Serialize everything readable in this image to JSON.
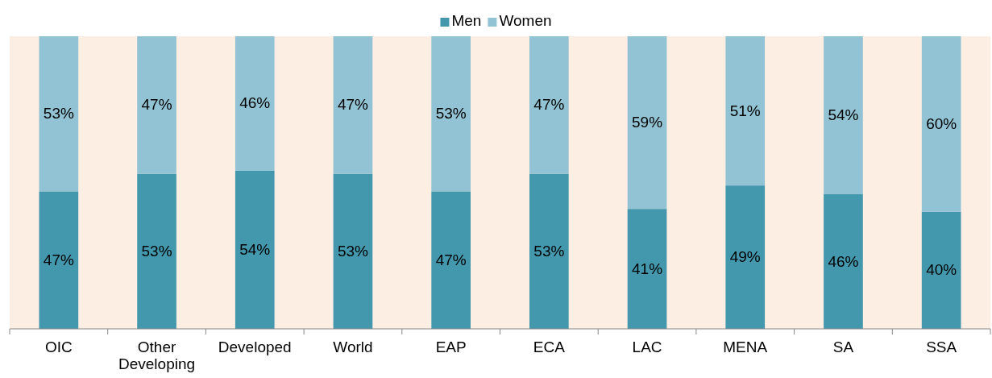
{
  "chart_data": {
    "type": "bar",
    "stacked": true,
    "categories": [
      "OIC",
      "Other Developing",
      "Developed",
      "World",
      "EAP",
      "ECA",
      "LAC",
      "MENA",
      "SA",
      "SSA"
    ],
    "series": [
      {
        "name": "Men",
        "color": "#4398ae",
        "values": [
          47,
          53,
          54,
          53,
          47,
          53,
          41,
          49,
          46,
          40
        ],
        "value_labels": [
          "47%",
          "53%",
          "54%",
          "53%",
          "47%",
          "53%",
          "41%",
          "49%",
          "46%",
          "40%"
        ]
      },
      {
        "name": "Women",
        "color": "#92c3d4",
        "values": [
          53,
          47,
          46,
          47,
          53,
          47,
          59,
          51,
          54,
          60
        ],
        "value_labels": [
          "53%",
          "47%",
          "46%",
          "47%",
          "53%",
          "47%",
          "59%",
          "51%",
          "54%",
          "60%"
        ]
      }
    ],
    "tick_labels": "x",
    "legend": "top"
  }
}
